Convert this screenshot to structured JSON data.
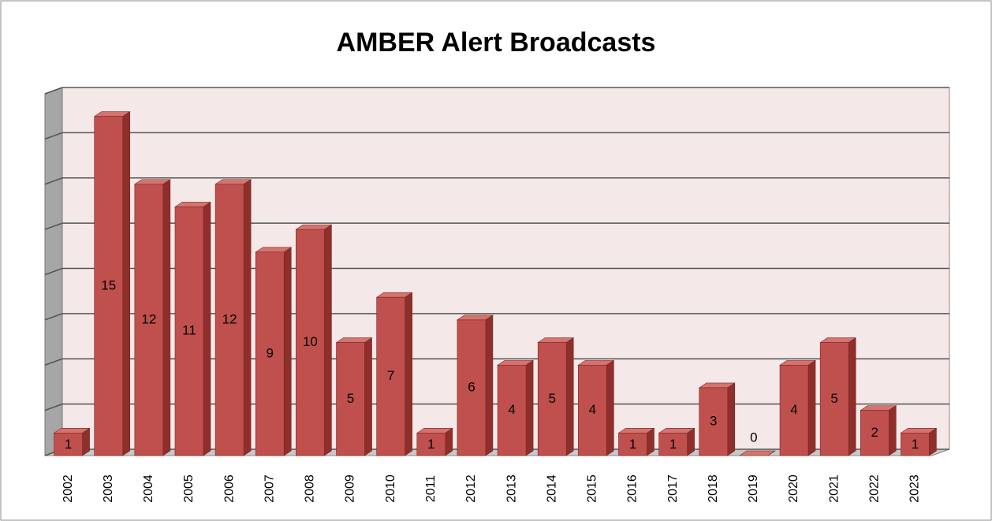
{
  "chart_data": {
    "type": "bar3d",
    "title": "AMBER Alert Broadcasts",
    "categories": [
      "2002",
      "2003",
      "2004",
      "2005",
      "2006",
      "2007",
      "2008",
      "2009",
      "2010",
      "2011",
      "2012",
      "2013",
      "2014",
      "2015",
      "2016",
      "2017",
      "2018",
      "2019",
      "2020",
      "2021",
      "2022",
      "2023"
    ],
    "values": [
      1,
      15,
      12,
      11,
      12,
      9,
      10,
      5,
      7,
      1,
      6,
      4,
      5,
      4,
      1,
      1,
      3,
      0,
      4,
      5,
      2,
      1
    ],
    "color": "#c0504d",
    "ylim": [
      0,
      16
    ],
    "yticks": [
      0,
      2,
      4,
      6,
      8,
      10,
      12,
      14,
      16
    ],
    "grid": true
  }
}
